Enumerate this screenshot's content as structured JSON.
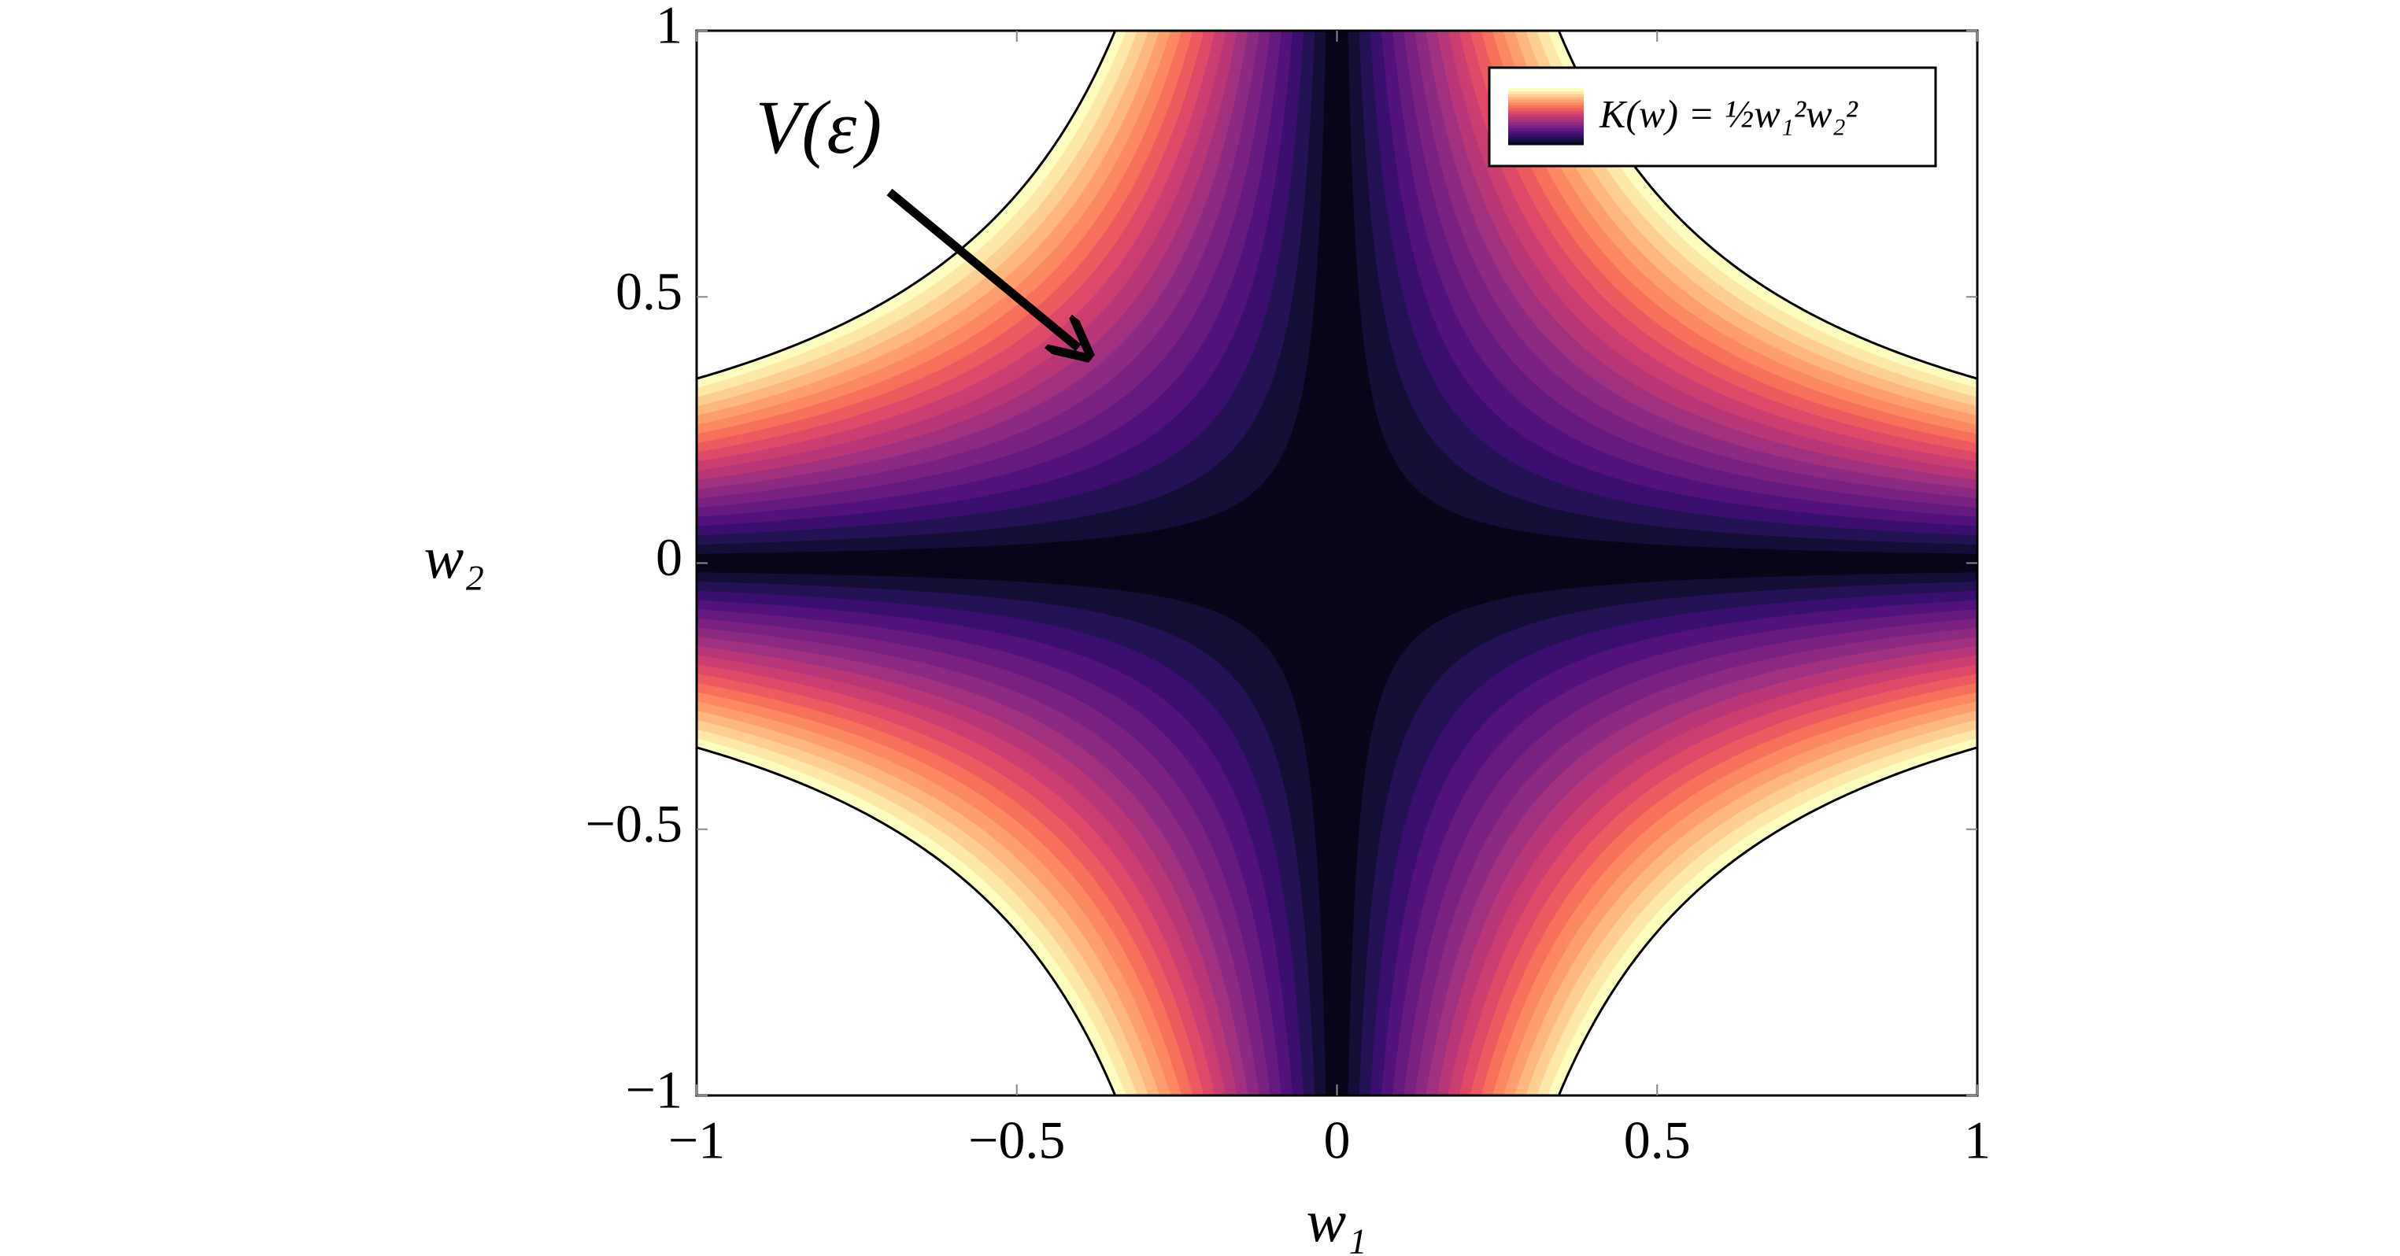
{
  "chart_data": {
    "type": "contour",
    "xlabel": "w₁",
    "ylabel": "w₂",
    "legend_label": "K(w) = ½w₁²w₂²",
    "annotation": "V(ε)",
    "xlim": [
      -1,
      1
    ],
    "ylim": [
      -1,
      1
    ],
    "xticks": [
      {
        "value": -1,
        "label": "−1"
      },
      {
        "value": -0.5,
        "label": "−0.5"
      },
      0,
      0.5,
      1
    ],
    "yticks": [
      {
        "value": -1,
        "label": "−1"
      },
      {
        "value": -0.5,
        "label": "−0.5"
      },
      0,
      0.5,
      1
    ],
    "levels": [
      0,
      0.00015,
      0.0006,
      0.00135,
      0.0024,
      0.00375,
      0.0054,
      0.00735,
      0.0096,
      0.01215,
      0.015,
      0.01815,
      0.0216,
      0.02535,
      0.0294,
      0.03375,
      0.0384,
      0.04335,
      0.0486,
      0.05415,
      0.06
    ],
    "colors": [
      "#06051a",
      "#140e36",
      "#251255",
      "#3b0f70",
      "#51127c",
      "#651a80",
      "#7a2181",
      "#8c2981",
      "#a1307e",
      "#b73779",
      "#ca3e72",
      "#de4968",
      "#ed5a5f",
      "#f7705c",
      "#fc8961",
      "#fe9f6d",
      "#feb77e",
      "#fecf92",
      "#fde7a9",
      "#fcfdbf"
    ],
    "legend_position": "upper right"
  }
}
